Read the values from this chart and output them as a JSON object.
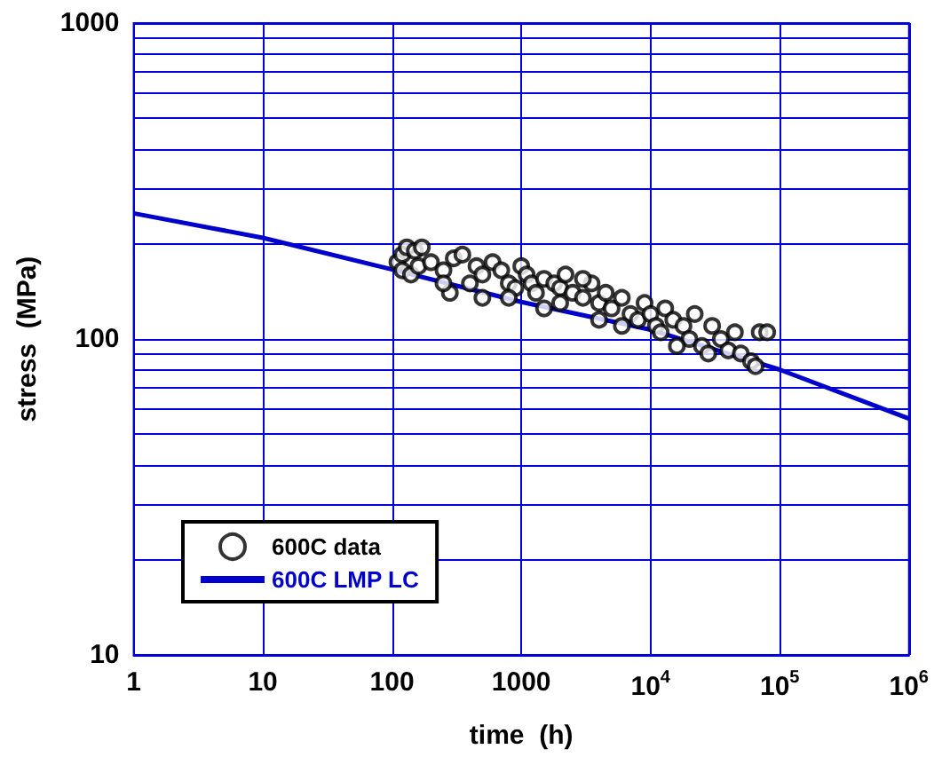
{
  "chart_data": {
    "type": "scatter",
    "xlabel": "time  (h)",
    "ylabel": "stress  (MPa)",
    "log": "xy",
    "grid": true,
    "legend": "bottom left",
    "xlim": [
      1,
      1000000
    ],
    "ylim": [
      10,
      1000
    ],
    "xticks": [
      1,
      10,
      100,
      1000,
      {
        "value": 10000,
        "label": "10$^{4}$"
      },
      {
        "value": 100000,
        "label": "10$^{5}$"
      },
      {
        "value": 1000000,
        "label": "10$^{6}$"
      }
    ],
    "yticks": [
      10,
      {
        "value": 20,
        "label": null
      },
      {
        "value": 30,
        "label": null
      },
      {
        "value": 40,
        "label": null
      },
      {
        "value": 50,
        "label": null
      },
      {
        "value": 60,
        "label": null
      },
      {
        "value": 70,
        "label": null
      },
      {
        "value": 80,
        "label": null
      },
      {
        "value": 90,
        "label": null
      },
      100,
      {
        "value": 200,
        "label": null
      },
      {
        "value": 300,
        "label": null
      },
      {
        "value": 400,
        "label": null
      },
      {
        "value": 500,
        "label": null
      },
      {
        "value": 600,
        "label": null
      },
      {
        "value": 700,
        "label": null
      },
      {
        "value": 800,
        "label": null
      },
      {
        "value": 900,
        "label": null
      },
      1000
    ],
    "series": [
      {
        "name": "600C data",
        "marker": "circle",
        "color": "#000000",
        "x": [
          110,
          120,
          130,
          150,
          170,
          120,
          140,
          160,
          200,
          250,
          300,
          350,
          280,
          400,
          450,
          500,
          600,
          700,
          800,
          900,
          1000,
          1100,
          1200,
          1300,
          1500,
          1800,
          2000,
          2200,
          2500,
          3000,
          3500,
          4000,
          4500,
          5000,
          6000,
          7000,
          8000,
          9000,
          10000,
          11000,
          12000,
          13000,
          15000,
          18000,
          20000,
          22000,
          25000,
          30000,
          35000,
          40000,
          45000,
          50000,
          60000,
          65000,
          70000,
          80000,
          1500,
          800,
          3000,
          6000,
          2000,
          500,
          250,
          4000,
          16000,
          28000
        ],
        "values": [
          175,
          185,
          195,
          190,
          195,
          165,
          160,
          170,
          175,
          165,
          180,
          185,
          140,
          150,
          170,
          160,
          175,
          165,
          150,
          145,
          170,
          160,
          150,
          140,
          155,
          150,
          145,
          160,
          140,
          135,
          150,
          130,
          140,
          125,
          135,
          120,
          115,
          130,
          120,
          110,
          105,
          125,
          115,
          110,
          100,
          120,
          95,
          110,
          100,
          92,
          105,
          90,
          85,
          82,
          105,
          105,
          125,
          135,
          155,
          110,
          130,
          135,
          150,
          115,
          95,
          90
        ]
      },
      {
        "name": "600C LMP LC",
        "type": "line",
        "marker": "none",
        "line_style": "solid",
        "color": "#0000cc",
        "x": [
          1,
          10,
          100,
          1000,
          10000,
          100000,
          1000000
        ],
        "values": [
          250,
          209,
          166,
          131,
          107,
          80,
          56
        ]
      }
    ]
  }
}
